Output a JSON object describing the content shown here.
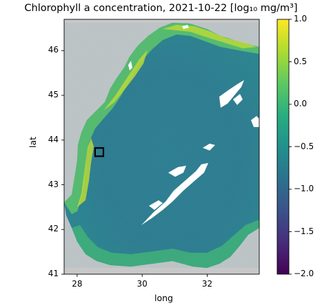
{
  "title": "Chlorophyll a concentration, 2021-10-22 [log₁₀ mg/m³]",
  "xlabel": "long",
  "ylabel": "lat",
  "x_ticks": [
    "28",
    "30",
    "32"
  ],
  "y_ticks": [
    "41",
    "42",
    "43",
    "44",
    "45",
    "46"
  ],
  "colorbar_ticks": [
    "1.0",
    "0.5",
    "0.0",
    "−0.5",
    "−1.0",
    "−1.5",
    "−2.0"
  ],
  "colormap": "viridis",
  "land_color": "#c8c8c8",
  "cloud_mask_color": "#ffffff",
  "map_extent": {
    "lon": [
      27.6,
      33.6
    ],
    "lat": [
      41.0,
      46.7
    ]
  },
  "colorbar_range": [
    -2.0,
    1.0
  ],
  "marker": {
    "lon": 28.68,
    "lat": 43.73,
    "edge_color": "#000000"
  }
}
